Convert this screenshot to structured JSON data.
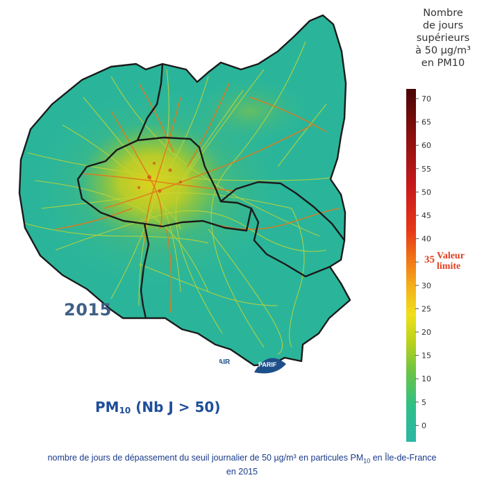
{
  "map": {
    "year": "2015",
    "pm_label": "PM",
    "pm_subscript": "10",
    "pm_suffix": " (Nb J > 50)",
    "logo_text_left": "AIR",
    "logo_text_right": "PARIF",
    "colors": {
      "base": "#2ab59a",
      "urban": "#8fc63a",
      "paris_core": "#d4d020",
      "roads_major": "#e2761c",
      "roads_minor": "#c7d32f",
      "boundary": "#1a1a1a",
      "logo_blue": "#1d4f8a"
    }
  },
  "legend": {
    "title_lines": [
      "Nombre",
      "de jours",
      "supérieurs",
      "à 50 µg/m³",
      "en PM10"
    ],
    "ticks": [
      "70",
      "65",
      "60",
      "55",
      "50",
      "45",
      "40",
      "35",
      "30",
      "25",
      "20",
      "15",
      "10",
      "5",
      "0"
    ],
    "limit_value": "35",
    "limit_label_line1": "Valeur",
    "limit_label_line2": "limite",
    "colorscale": [
      "#2ab7a6",
      "#2fbf88",
      "#6cc444",
      "#b7d21c",
      "#f0e01a",
      "#f4b01a",
      "#f17a17",
      "#e63818",
      "#c81a1a",
      "#8e1010",
      "#4a0505"
    ]
  },
  "caption": {
    "line1_pre": "nombre de jours de dépassement du seuil journalier de 50 µg/m³ en particules PM",
    "line1_sub": "10",
    "line1_post": " en Île-de-France",
    "line2": "en 2015"
  }
}
